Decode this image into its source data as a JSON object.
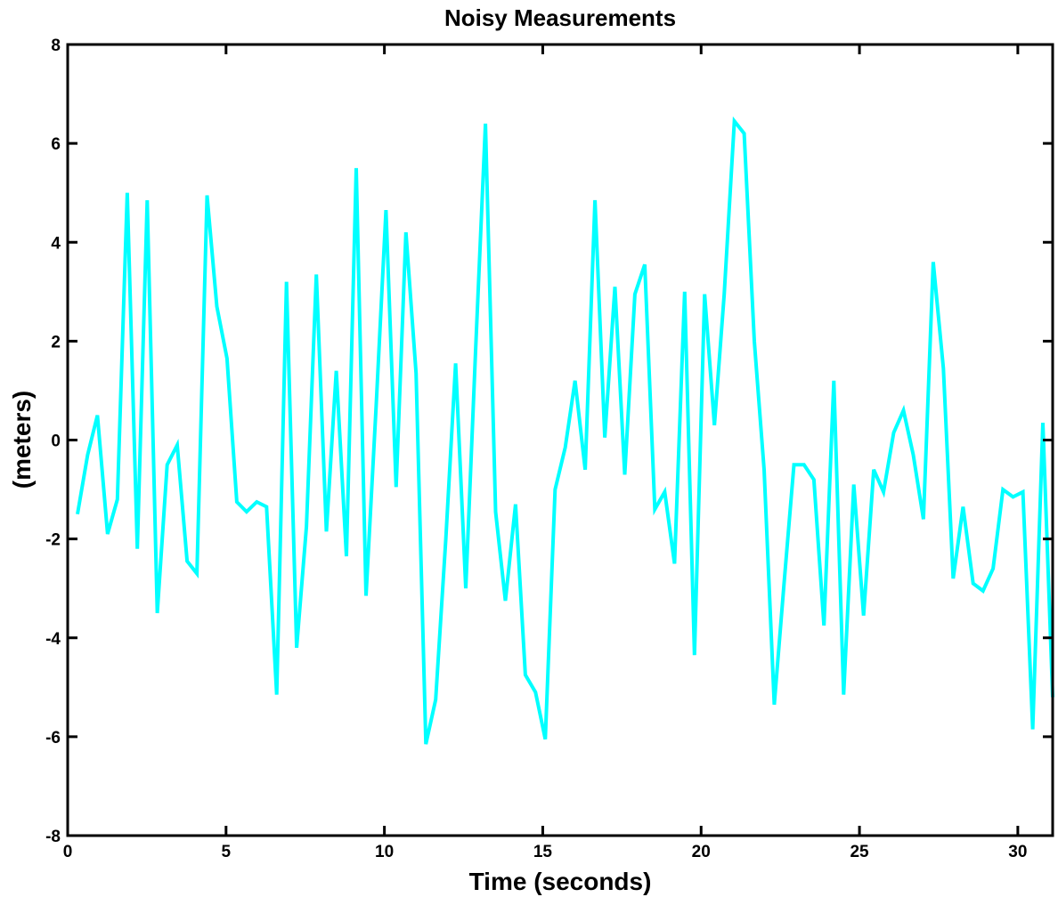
{
  "chart_data": {
    "type": "line",
    "title": "Noisy Measurements",
    "xlabel": "Time (seconds)",
    "ylabel": "(meters)",
    "xlim": [
      0,
      31.1
    ],
    "ylim": [
      -8,
      8
    ],
    "xticks": [
      0,
      5,
      10,
      15,
      20,
      25,
      30
    ],
    "yticks": [
      -8,
      -6,
      -4,
      -2,
      0,
      2,
      4,
      6,
      8
    ],
    "grid": false,
    "line_color": "#00ffff",
    "series": [
      {
        "x": [
          0.31,
          0.63,
          0.94,
          1.26,
          1.57,
          1.88,
          2.2,
          2.51,
          2.83,
          3.14,
          3.46,
          3.77,
          4.08,
          4.4,
          4.71,
          5.03,
          5.34,
          5.65,
          5.97,
          6.28,
          6.6,
          6.91,
          7.23,
          7.54,
          7.85,
          8.17,
          8.48,
          8.8,
          9.11,
          9.42,
          9.74,
          10.05,
          10.37,
          10.68,
          11.0,
          11.31,
          11.62,
          11.94,
          12.25,
          12.57,
          12.88,
          13.19,
          13.51,
          13.82,
          14.14,
          14.45,
          14.77,
          15.08,
          15.39,
          15.71,
          16.02,
          16.34,
          16.65,
          16.96,
          17.28,
          17.59,
          17.91,
          18.22,
          18.54,
          18.85,
          19.16,
          19.48,
          19.79,
          20.11,
          20.42,
          20.73,
          21.05,
          21.36,
          21.68,
          21.99,
          22.31,
          22.62,
          22.93,
          23.25,
          23.56,
          23.88,
          24.19,
          24.5,
          24.82,
          25.13,
          25.45,
          25.76,
          26.08,
          26.39,
          26.7,
          27.02,
          27.33,
          27.65,
          27.96,
          28.27,
          28.59,
          28.9,
          29.22,
          29.53,
          29.85,
          30.16,
          30.47,
          30.79,
          31.1
        ],
        "values": [
          -1.5,
          -0.3,
          0.5,
          -1.9,
          -1.2,
          5.0,
          -2.2,
          4.85,
          -3.5,
          -0.5,
          -0.1,
          -2.45,
          -2.7,
          4.95,
          2.7,
          1.65,
          -1.25,
          -1.45,
          -1.25,
          -1.35,
          -5.15,
          3.2,
          -4.2,
          -1.75,
          3.35,
          -1.85,
          1.4,
          -2.35,
          5.5,
          -3.15,
          0.7,
          4.65,
          -0.95,
          4.2,
          1.35,
          -6.15,
          -5.25,
          -2.0,
          1.55,
          -3.0,
          1.8,
          6.4,
          -1.45,
          -3.25,
          -1.3,
          -4.75,
          -5.1,
          -6.05,
          -1.0,
          -0.15,
          1.2,
          -0.6,
          4.85,
          0.05,
          3.1,
          -0.7,
          2.95,
          3.55,
          -1.4,
          -1.05,
          -2.5,
          3.0,
          -4.35,
          2.95,
          0.3,
          2.95,
          6.45,
          6.2,
          2.0,
          -0.6,
          -5.35,
          -2.9,
          -0.5,
          -0.5,
          -0.8,
          -3.75,
          1.2,
          -5.15,
          -0.9,
          -3.55,
          -0.6,
          -1.05,
          0.15,
          0.6,
          -0.3,
          -1.6,
          3.6,
          1.45,
          -2.8,
          -1.35,
          -2.9,
          -3.05,
          -2.6,
          -1.0,
          -1.15,
          -1.05,
          -5.85,
          0.35,
          -5.2
        ]
      }
    ]
  }
}
